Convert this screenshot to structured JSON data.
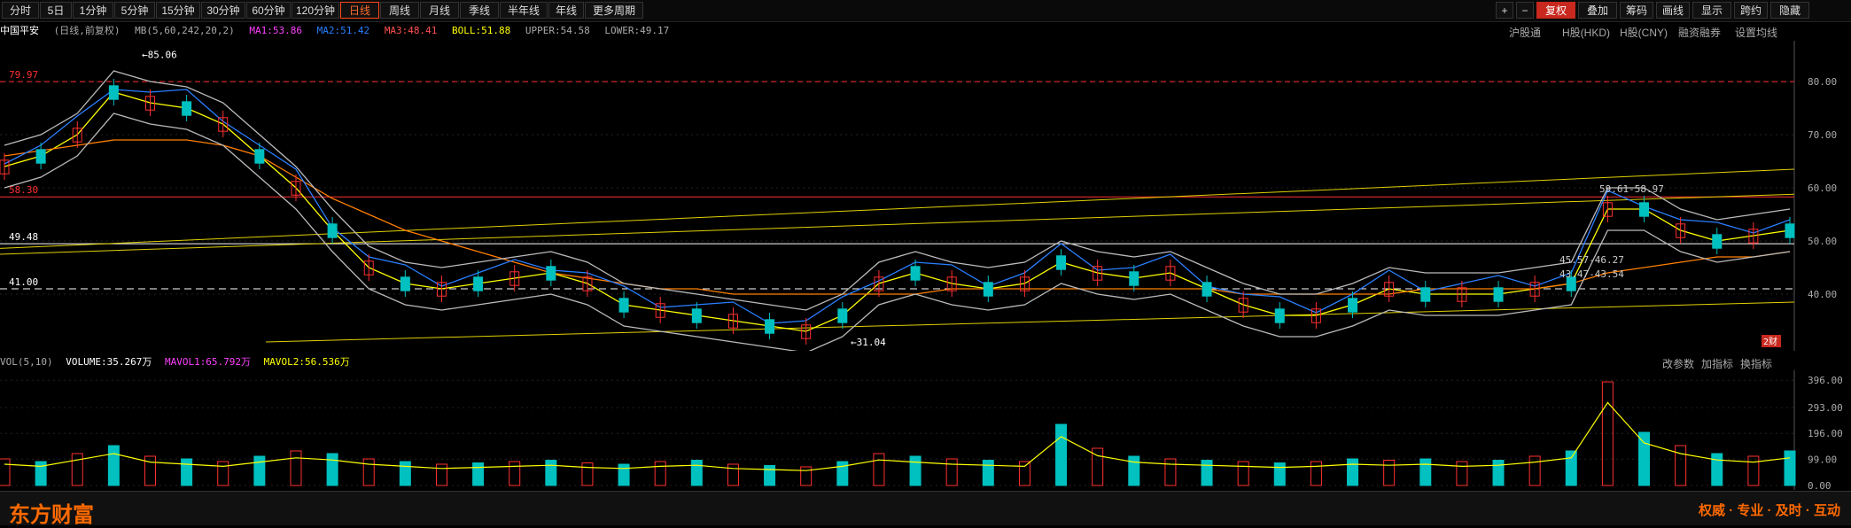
{
  "toolbar": {
    "periods": [
      "分时",
      "5日",
      "1分钟",
      "5分钟",
      "15分钟",
      "30分钟",
      "60分钟",
      "120分钟",
      "日线",
      "周线",
      "月线",
      "季线",
      "半年线",
      "年线",
      "更多周期"
    ],
    "active": "日线",
    "right_buttons": [
      "+",
      "−",
      "复权",
      "叠加",
      "筹码",
      "画线",
      "显示",
      "跨约",
      "隐藏"
    ]
  },
  "info": {
    "stock": "中国平安",
    "mode": "(日线,前复权)",
    "mb": "MB(5,60,242,20,2)",
    "ma1": "MA1:53.86",
    "ma2": "MA2:51.42",
    "ma3": "MA3:48.41",
    "boll": "BOLL:51.88",
    "upper": "UPPER:54.58",
    "lower": "LOWER:49.17"
  },
  "subtabs": [
    "沪股通",
    "H股(HKD)",
    "H股(CNY)",
    "融资融券",
    "设置均线"
  ],
  "price_labels": {
    "top_left": "79.97",
    "mid_left": "58.30",
    "white": "49.48",
    "dash": "41.00",
    "high": "85.06",
    "low": "31.04",
    "r1": "59.61-58.97",
    "r2": "45.57-46.27",
    "r3": "43.47-43.54"
  },
  "y_ticks": [
    "80.00",
    "70.00",
    "60.00",
    "50.00",
    "40.00"
  ],
  "vol": {
    "label": "VOL(5,10)",
    "volume": "VOLUME:35.267万",
    "mavol1": "MAVOL1:65.792万",
    "mavol2": "MAVOL2:56.536万",
    "ticks": [
      "396.00",
      "293.00",
      "196.00",
      "99.00",
      "0.00"
    ],
    "actions": [
      "改参数",
      "加指标",
      "换指标"
    ]
  },
  "badge": "2财",
  "footer": {
    "logo": "东方财富",
    "slogan": "权威 · 专业 · 及时 · 互动"
  },
  "colors": {
    "ma1": "#ffffff",
    "ma2": "#2a7fff",
    "ma3": "#ff7f00",
    "boll": "#ffff00",
    "up": "#ff3030",
    "down": "#00c0c0"
  },
  "chart_data": {
    "type": "line",
    "title": "中国平安",
    "price_range": [
      31,
      86
    ],
    "series": [
      {
        "name": "MA1",
        "values": [
          64,
          66,
          70,
          78,
          76,
          75,
          72,
          66,
          60,
          52,
          45,
          42,
          41,
          42,
          43,
          44,
          42,
          38,
          37,
          36,
          35,
          34,
          33,
          36,
          42,
          44,
          42,
          41,
          42,
          46,
          44,
          43,
          44,
          41,
          38,
          36,
          36,
          38,
          41,
          40,
          40,
          40,
          41,
          42,
          56,
          56,
          52,
          50,
          51,
          52
        ]
      },
      {
        "name": "MA3",
        "values": [
          66,
          67,
          68,
          69,
          69,
          69,
          68,
          66,
          62,
          58,
          55,
          52,
          50,
          48,
          46,
          44,
          43,
          42,
          41,
          41,
          40,
          40,
          40,
          40,
          40,
          40,
          41,
          41,
          41,
          41,
          41,
          41,
          41,
          41,
          40,
          40,
          40,
          40,
          40,
          41,
          41,
          41,
          41,
          42,
          44,
          45,
          46,
          47,
          47,
          48
        ]
      },
      {
        "name": "VOL",
        "values": [
          100,
          90,
          120,
          150,
          110,
          100,
          90,
          110,
          130,
          120,
          100,
          90,
          80,
          85,
          90,
          95,
          85,
          80,
          90,
          95,
          80,
          75,
          70,
          90,
          120,
          110,
          100,
          95,
          90,
          230,
          140,
          110,
          100,
          95,
          90,
          85,
          90,
          100,
          95,
          100,
          90,
          95,
          110,
          130,
          390,
          200,
          150,
          120,
          110,
          130
        ]
      }
    ]
  }
}
